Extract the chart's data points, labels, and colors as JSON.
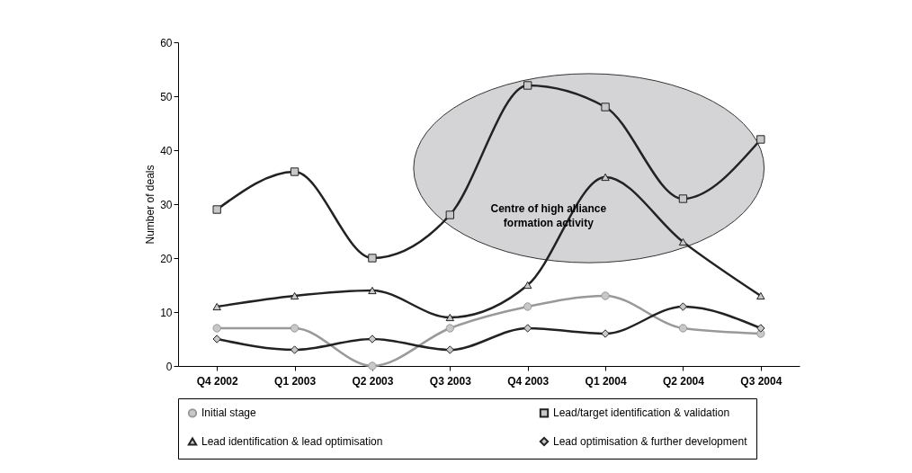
{
  "chart_data": {
    "type": "line",
    "ylabel": "Number of deals",
    "categories": [
      "Q4 2002",
      "Q1 2003",
      "Q2 2003",
      "Q3 2003",
      "Q4 2003",
      "Q1 2004",
      "Q2 2004",
      "Q3 2004"
    ],
    "series": [
      {
        "name": "Initial stage",
        "color": "#999999",
        "marker": "circle",
        "values": [
          7,
          7,
          0,
          7,
          11,
          13,
          7,
          6
        ]
      },
      {
        "name": "Lead/target identification & validation",
        "color": "#222222",
        "marker": "square",
        "values": [
          29,
          36,
          20,
          28,
          52,
          48,
          31,
          42
        ]
      },
      {
        "name": "Lead identification & lead optimisation",
        "color": "#222222",
        "marker": "triangle",
        "values": [
          11,
          13,
          14,
          9,
          15,
          35,
          23,
          13
        ]
      },
      {
        "name": "Lead optimisation & further development",
        "color": "#222222",
        "marker": "diamond",
        "values": [
          5,
          3,
          5,
          3,
          7,
          6,
          11,
          7
        ]
      }
    ],
    "ylim": [
      0,
      60
    ],
    "yticks": [
      0,
      10,
      20,
      30,
      40,
      50,
      60
    ],
    "grid": false,
    "legend": "bottom",
    "annotations": [
      "Centre of high alliance formation activity"
    ]
  }
}
